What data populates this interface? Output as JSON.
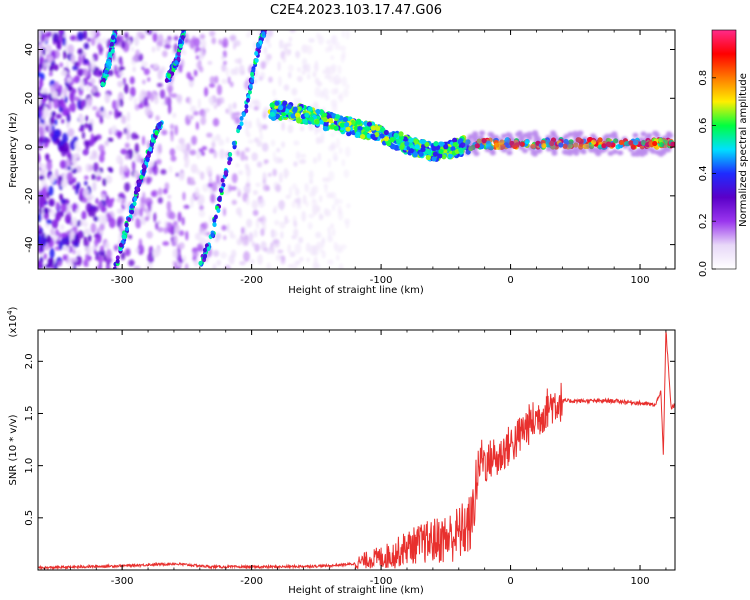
{
  "title": "C2E4.2023.103.17.47.G06",
  "chart_data": [
    {
      "type": "heatmap",
      "xlabel": "Height of straight line (km)",
      "ylabel": "Frequency (Hz)",
      "xlim": [
        -365,
        127
      ],
      "ylim": [
        -50,
        48
      ],
      "x_ticks": [
        -300,
        -200,
        -100,
        0,
        100
      ],
      "y_ticks": [
        -40,
        -20,
        0,
        20,
        40
      ],
      "colorbar": {
        "label": "Normalized spectral amplitude",
        "range": [
          0,
          1
        ],
        "ticks": [
          0.0,
          0.2,
          0.4,
          0.6,
          0.8
        ],
        "colormap": "rainbow",
        "stops": [
          "#ffffff",
          "#e8d8f8",
          "#9a36ee",
          "#5a00c8",
          "#1e2cff",
          "#00e0ff",
          "#00ff40",
          "#ffee00",
          "#ff7a00",
          "#ff0000",
          "#ff2a8a"
        ]
      },
      "features": [
        {
          "name": "main-trace",
          "points": [
            [
              -185,
              15
            ],
            [
              -170,
              15
            ],
            [
              -150,
              12
            ],
            [
              -130,
              9
            ],
            [
              -110,
              7
            ],
            [
              -90,
              3
            ],
            [
              -75,
              0
            ],
            [
              -60,
              -2
            ],
            [
              -45,
              -1
            ],
            [
              -35,
              1
            ],
            [
              0,
              1.5
            ],
            [
              50,
              1.5
            ],
            [
              100,
              1.5
            ],
            [
              127,
              1.5
            ]
          ]
        },
        {
          "name": "streak-1",
          "points": [
            [
              -305,
              -50
            ],
            [
              -295,
              -30
            ],
            [
              -285,
              -12
            ],
            [
              -275,
              5
            ],
            [
              -270,
              10
            ]
          ]
        },
        {
          "name": "streak-2",
          "points": [
            [
              -265,
              28
            ],
            [
              -258,
              35
            ],
            [
              -252,
              48
            ]
          ]
        },
        {
          "name": "streak-3",
          "points": [
            [
              -315,
              26
            ],
            [
              -310,
              35
            ],
            [
              -305,
              48
            ]
          ]
        },
        {
          "name": "streak-4",
          "points": [
            [
              -240,
              -50
            ],
            [
              -230,
              -35
            ],
            [
              -220,
              -10
            ],
            [
              -205,
              15
            ],
            [
              -195,
              40
            ],
            [
              -190,
              48
            ]
          ]
        }
      ]
    },
    {
      "type": "line",
      "xlabel": "Height of straight line (km)",
      "ylabel": "SNR (10 * v/v)",
      "yscale_label": "(x10",
      "yscale_exp": "4",
      "xlim": [
        -365,
        127
      ],
      "ylim": [
        0,
        2.3
      ],
      "x_ticks": [
        -300,
        -200,
        -100,
        0,
        100
      ],
      "y_ticks": [
        0.5,
        1.0,
        1.5,
        2.0
      ],
      "series": [
        {
          "color": "#e8302e",
          "x": [
            -365,
            -300,
            -260,
            -230,
            -180,
            -140,
            -120,
            -110,
            -100,
            -90,
            -80,
            -70,
            -60,
            -50,
            -40,
            -30,
            -26,
            -22,
            -18,
            -14,
            -10,
            -5,
            0,
            5,
            10,
            15,
            20,
            25,
            30,
            35,
            40,
            50,
            60,
            80,
            100,
            112,
            116,
            118,
            120,
            124,
            127
          ],
          "y": [
            0.02,
            0.04,
            0.06,
            0.03,
            0.03,
            0.04,
            0.06,
            0.1,
            0.12,
            0.15,
            0.22,
            0.25,
            0.28,
            0.3,
            0.35,
            0.45,
            0.9,
            1.1,
            1.0,
            1.1,
            1.05,
            1.15,
            1.2,
            1.25,
            1.35,
            1.4,
            1.45,
            1.5,
            1.58,
            1.6,
            1.62,
            1.62,
            1.62,
            1.62,
            1.6,
            1.58,
            1.72,
            1.1,
            2.3,
            1.55,
            1.58
          ]
        }
      ]
    }
  ]
}
